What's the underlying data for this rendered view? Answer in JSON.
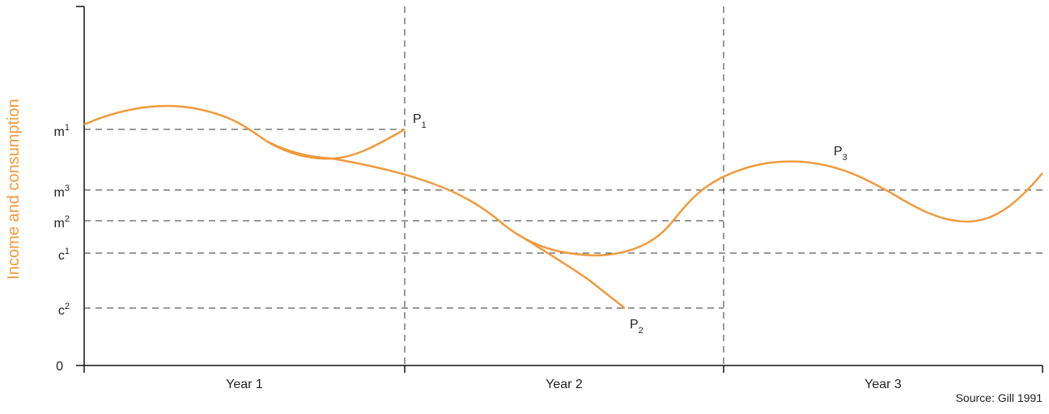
{
  "figure": {
    "y_axis_label": "Income and consumption",
    "source": "Source: Gill 1991",
    "curve_color": "#ef9a3e",
    "y_levels": [
      {
        "base": "m",
        "sup": "1"
      },
      {
        "base": "m",
        "sup": "3"
      },
      {
        "base": "m",
        "sup": "2"
      },
      {
        "base": "c",
        "sup": "1"
      },
      {
        "base": "c",
        "sup": "2"
      }
    ],
    "zero_label": "0",
    "periods": [
      "Year 1",
      "Year 2",
      "Year 3"
    ],
    "points": [
      {
        "base": "P",
        "sub": "1"
      },
      {
        "base": "P",
        "sub": "2"
      },
      {
        "base": "P",
        "sub": "3"
      }
    ]
  }
}
